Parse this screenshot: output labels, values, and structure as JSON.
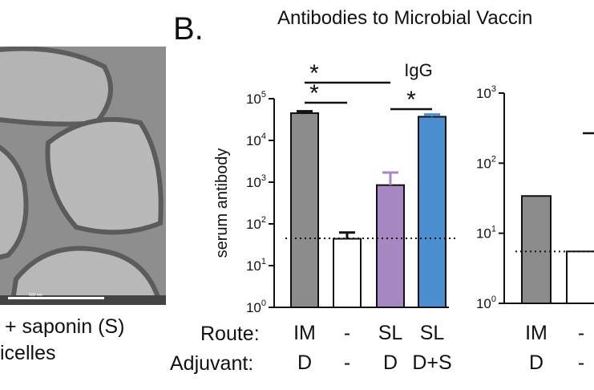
{
  "panel_a": {
    "scale_bar_label": "500 nm",
    "caption_line1": "+ saponin (S)",
    "caption_line2": "icelles"
  },
  "panel_b": {
    "letter": "B.",
    "title": "Antibodies to Microbial Vaccin",
    "row_labels": {
      "route": "Route:",
      "adjuvant": "Adjuvant:"
    }
  },
  "chart_data": [
    {
      "type": "bar",
      "title": "IgG",
      "ylabel": "serum antibody",
      "yscale": "log",
      "ylim": [
        1,
        100000
      ],
      "y_tick_labels": [
        "10^0",
        "10^1",
        "10^2",
        "10^3",
        "10^4",
        "10^5"
      ],
      "categories": [
        "IM D",
        "- -",
        "SL D",
        "SL D+S"
      ],
      "route": [
        "IM",
        "-",
        "SL",
        "SL"
      ],
      "adjuvant": [
        "D",
        "-",
        "D",
        "D+S"
      ],
      "values": [
        45000,
        44,
        850,
        37000
      ],
      "error_upper": [
        50000,
        62,
        1700,
        42000
      ],
      "bar_colors": [
        "#8c8c8c",
        "#ffffff",
        "#a687c2",
        "#4c8fd0"
      ],
      "error_colors": [
        "#111111",
        "#111111",
        "#a687c2",
        "#4c8fd0"
      ],
      "detection_limit": 45,
      "significance": [
        {
          "from": 0,
          "to": 2,
          "label": "*"
        },
        {
          "from": 0,
          "to": 1,
          "label": "*"
        },
        {
          "from": 2,
          "to": 3,
          "label": "*"
        }
      ]
    },
    {
      "type": "bar",
      "yscale": "log",
      "ylim": [
        1,
        1000
      ],
      "y_tick_labels": [
        "10^0",
        "10^1",
        "10^2",
        "10^3"
      ],
      "categories": [
        "IM D",
        "- -"
      ],
      "route": [
        "IM",
        "-"
      ],
      "adjuvant": [
        "D",
        "-"
      ],
      "values": [
        34,
        5.5
      ],
      "bar_colors": [
        "#8c8c8c",
        "#ffffff"
      ],
      "detection_limit": 5.5
    }
  ]
}
